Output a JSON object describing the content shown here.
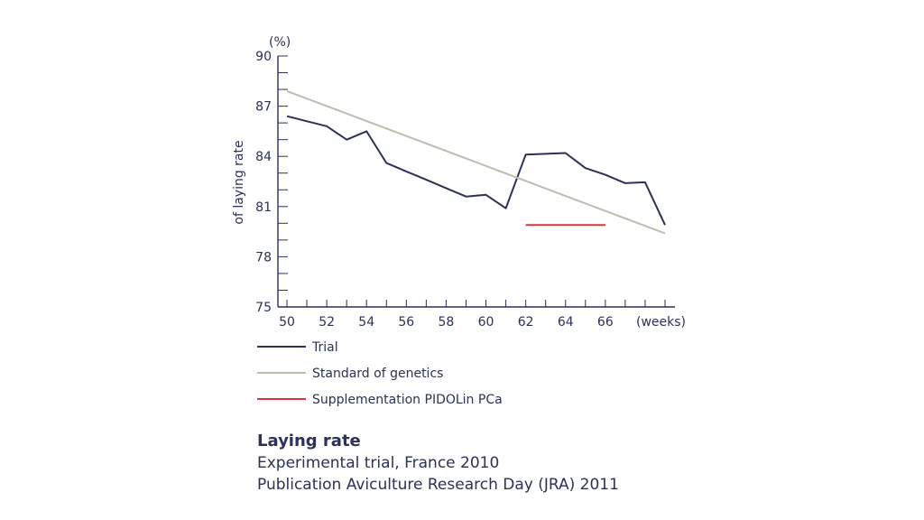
{
  "chart_data": {
    "type": "line",
    "ylabel": "of laying rate",
    "y_unit": "(%)",
    "x_unit": "(weeks)",
    "xlim": [
      50,
      69
    ],
    "ylim": [
      75,
      90
    ],
    "x_ticks": [
      50,
      52,
      54,
      56,
      58,
      60,
      62,
      64,
      66
    ],
    "y_ticks": [
      75,
      78,
      81,
      84,
      87,
      90
    ],
    "grid": false,
    "legend_position": "bottom-left",
    "series": [
      {
        "name": "Trial",
        "color": "#2b3157",
        "points": [
          [
            50,
            86.4
          ],
          [
            51,
            86.1
          ],
          [
            52,
            85.8
          ],
          [
            53,
            85.0
          ],
          [
            54,
            85.5
          ],
          [
            55,
            83.6
          ],
          [
            56,
            83.1
          ],
          [
            57,
            82.6
          ],
          [
            58,
            82.1
          ],
          [
            59,
            81.6
          ],
          [
            60,
            81.7
          ],
          [
            61,
            80.9
          ],
          [
            62,
            84.1
          ],
          [
            63,
            84.15
          ],
          [
            64,
            84.2
          ],
          [
            65,
            83.3
          ],
          [
            66,
            82.9
          ],
          [
            67,
            82.4
          ],
          [
            68,
            82.45
          ],
          [
            69,
            79.9
          ]
        ]
      },
      {
        "name": "Standard of genetics",
        "color": "#bdbcb0",
        "points": [
          [
            50,
            87.9
          ],
          [
            69,
            79.4
          ]
        ]
      },
      {
        "name": "Supplementation PIDOLin PCa",
        "color": "#e0323e",
        "points": [
          [
            62,
            79.9
          ],
          [
            66,
            79.9
          ]
        ]
      }
    ]
  },
  "caption": {
    "title": "Laying rate",
    "line1": "Experimental trial, France 2010",
    "line2": "Publication Aviculture Research Day (JRA) 2011"
  }
}
